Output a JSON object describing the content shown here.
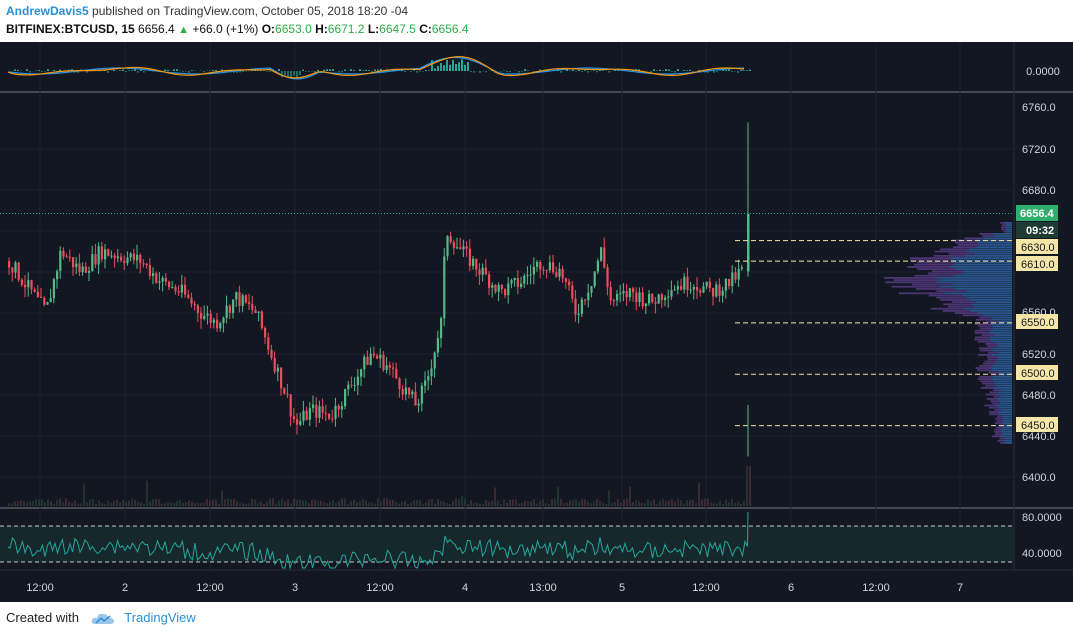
{
  "header": {
    "user": "AndrewDavis5",
    "published": "published on TradingView.com, October 05, 2018 18:20 -04",
    "symbol": "BITFINEX:BTCUSD, 15",
    "price": "6656.4",
    "change": "+66.0 (+1%)",
    "o_label": "O:",
    "o_value": "6653.0",
    "h_label": "H:",
    "h_value": "6671.2",
    "l_label": "L:",
    "l_value": "6647.5",
    "c_label": "C:",
    "c_value": "6656.4"
  },
  "macd": {
    "axis_label": "0.0000"
  },
  "price_axis": {
    "ticks": [
      "6760.0",
      "6720.0",
      "6680.0",
      "6560.0",
      "6520.0",
      "6480.0",
      "6440.0",
      "6400.0"
    ],
    "current_price": "6656.4",
    "countdown": "09:32",
    "levels": [
      "6630.0",
      "6610.0",
      "6550.0",
      "6500.0",
      "6450.0"
    ]
  },
  "rsi": {
    "ticks": [
      "80.0000",
      "40.0000"
    ]
  },
  "time_axis": {
    "labels": [
      "12:00",
      "2",
      "12:00",
      "3",
      "12:00",
      "4",
      "13:00",
      "5",
      "12:00",
      "6",
      "12:00",
      "7"
    ]
  },
  "footer": {
    "created_with": "Created with",
    "brand": "TradingView"
  },
  "colors": {
    "background": "#131722",
    "bull": "#53b987",
    "bear": "#eb4d5c",
    "level": "#f5e6a8",
    "price_tag": "#2fae6d",
    "macd_line": "#2196f3",
    "signal_line": "#ff9800",
    "rsi_line": "#26a69a"
  }
}
